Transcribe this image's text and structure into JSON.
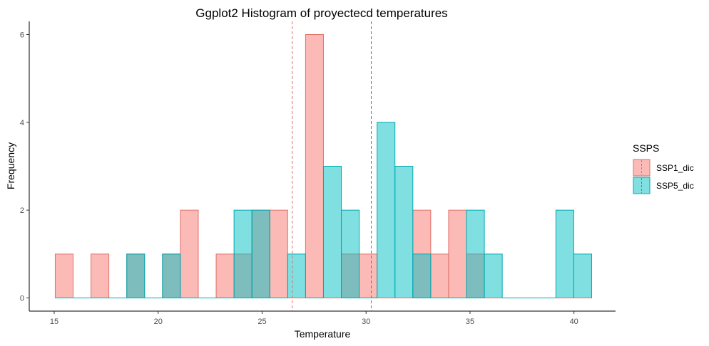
{
  "chart_data": {
    "type": "histogram",
    "title": "Ggplot2 Histogram of proyectecd temperatures",
    "xlabel": "Temperature",
    "ylabel": "Frequency",
    "xlim": [
      13.8,
      42.0
    ],
    "ylim": [
      -0.3,
      6.3
    ],
    "x_ticks": [
      15,
      20,
      25,
      30,
      35,
      40
    ],
    "y_ticks": [
      0,
      2,
      4,
      6
    ],
    "bin_edges": [
      15.05,
      15.91,
      16.77,
      17.63,
      18.49,
      19.35,
      20.21,
      21.07,
      21.93,
      22.79,
      23.65,
      24.51,
      25.37,
      26.23,
      27.09,
      27.95,
      28.81,
      29.67,
      30.53,
      31.39,
      32.25,
      33.11,
      33.97,
      34.83,
      35.69,
      36.55,
      37.41,
      38.27,
      39.13,
      39.99,
      40.85
    ],
    "legend_title": "SSPS",
    "legend_position": "right",
    "grid": false,
    "series": [
      {
        "name": "SSP1_dic",
        "fill": "#F8766D",
        "stroke": "#E07068",
        "mean_line": 26.45,
        "counts": [
          1,
          0,
          1,
          0,
          1,
          0,
          1,
          2,
          0,
          1,
          1,
          2,
          2,
          0,
          6,
          0,
          1,
          1,
          0,
          0,
          2,
          1,
          2,
          1,
          0,
          0,
          0,
          0,
          0,
          0
        ]
      },
      {
        "name": "SSP5_dic",
        "fill": "#00BFC4",
        "stroke": "#00A9B0",
        "mean_line": 30.25,
        "counts": [
          0,
          0,
          0,
          0,
          1,
          0,
          1,
          0,
          0,
          0,
          2,
          2,
          0,
          1,
          0,
          3,
          2,
          0,
          4,
          3,
          1,
          0,
          0,
          2,
          1,
          0,
          0,
          0,
          2,
          1
        ]
      }
    ]
  }
}
